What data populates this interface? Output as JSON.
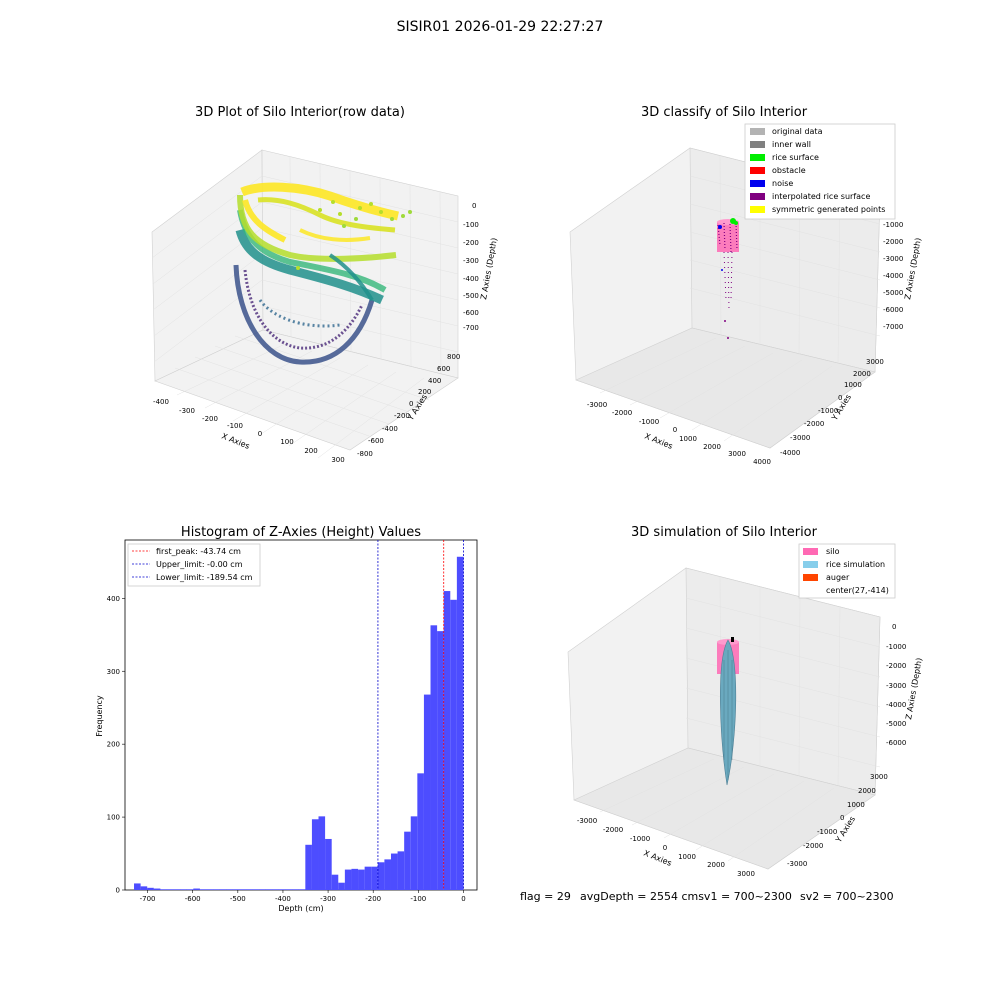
{
  "figure": {
    "suptitle": "SISIR01 2026-01-29 22:27:27",
    "footer": {
      "flag": "flag = 29",
      "avg": "avgDepth = 2554 cmsv1 = 700~2300",
      "sv2": "sv2 = 700~2300"
    }
  },
  "panels": {
    "raw": {
      "title": "3D Plot of Silo Interior(row data)",
      "xlabel": "X Axies",
      "ylabel": "Y Axies",
      "zlabel": "Z Axies (Depth)",
      "xticks": [
        "-400",
        "-300",
        "-200",
        "-100",
        "0",
        "100",
        "200",
        "300"
      ],
      "yticks": [
        "-800",
        "-600",
        "-400",
        "-200",
        "0",
        "200",
        "400",
        "600",
        "800"
      ],
      "zticks": [
        "0",
        "-100",
        "-200",
        "-300",
        "-400",
        "-500",
        "-600",
        "-700"
      ],
      "colormap": "viridis"
    },
    "classify": {
      "title": "3D classify of Silo Interior",
      "xlabel": "X Axies",
      "ylabel": "Y Axies",
      "zlabel": "Z Axies (Depth)",
      "xticks": [
        "-3000",
        "-2000",
        "-1000",
        "0",
        "1000",
        "2000",
        "3000",
        "4000"
      ],
      "yticks": [
        "-4000",
        "-3000",
        "-2000",
        "-1000",
        "0",
        "1000",
        "2000",
        "3000"
      ],
      "zticks": [
        "-1000",
        "-2000",
        "-3000",
        "-4000",
        "-5000",
        "-6000",
        "-7000"
      ],
      "legend": [
        {
          "label": "original data",
          "color": "#b3b3b3"
        },
        {
          "label": "inner wall",
          "color": "#808080"
        },
        {
          "label": "rice surface",
          "color": "#00ee00"
        },
        {
          "label": "obstacle",
          "color": "#ff0000"
        },
        {
          "label": "noise",
          "color": "#0000ee"
        },
        {
          "label": "interpolated rice surface",
          "color": "#800080"
        },
        {
          "label": "symmetric generated points",
          "color": "#ffff00"
        }
      ]
    },
    "histogram": {
      "title": "Histogram of Z-Axies (Height) Values",
      "xlabel": "Depth (cm)",
      "ylabel": "Frequency",
      "legend": [
        {
          "label": "first_peak: -43.74 cm",
          "color": "#ff0000"
        },
        {
          "label": "Upper_limit: -0.00 cm",
          "color": "#0000cc"
        },
        {
          "label": "Lower_limit: -189.54 cm",
          "color": "#0000cc"
        }
      ]
    },
    "simulation": {
      "title": "3D simulation of Silo Interior",
      "xlabel": "X Axies",
      "ylabel": "Y Axies",
      "zlabel": "Z Axies (Depth)",
      "xticks": [
        "-3000",
        "-2000",
        "-1000",
        "0",
        "1000",
        "2000",
        "3000"
      ],
      "yticks": [
        "-3000",
        "-2000",
        "-1000",
        "0",
        "1000",
        "2000",
        "3000"
      ],
      "zticks": [
        "0",
        "-1000",
        "-2000",
        "-3000",
        "-4000",
        "-5000",
        "-6000"
      ],
      "legend": [
        {
          "label": "silo",
          "color": "#ff69b4"
        },
        {
          "label": "rice simulation",
          "color": "#87ceeb"
        },
        {
          "label": "auger",
          "color": "#ff4500"
        },
        {
          "label": "center(27,-414)",
          "color": ""
        }
      ]
    }
  },
  "chart_data": {
    "type": "bar",
    "title": "Histogram of Z-Axies (Height) Values",
    "xlabel": "Depth (cm)",
    "ylabel": "Frequency",
    "xlim": [
      -750,
      30
    ],
    "ylim": [
      0,
      480
    ],
    "xticks": [
      -700,
      -600,
      -500,
      -400,
      -300,
      -200,
      -100,
      0
    ],
    "yticks": [
      0,
      100,
      200,
      300,
      400
    ],
    "bin_width": 14.6,
    "bins": [
      {
        "x": -730,
        "y": 9
      },
      {
        "x": -715.4,
        "y": 5
      },
      {
        "x": -700.8,
        "y": 3
      },
      {
        "x": -686.2,
        "y": 2
      },
      {
        "x": -671.6,
        "y": 1
      },
      {
        "x": -657,
        "y": 1
      },
      {
        "x": -642.4,
        "y": 1
      },
      {
        "x": -627.8,
        "y": 1
      },
      {
        "x": -613.2,
        "y": 1
      },
      {
        "x": -598.6,
        "y": 2
      },
      {
        "x": -584,
        "y": 1
      },
      {
        "x": -569.4,
        "y": 1
      },
      {
        "x": -554.8,
        "y": 1
      },
      {
        "x": -540.2,
        "y": 1
      },
      {
        "x": -525.6,
        "y": 1
      },
      {
        "x": -511,
        "y": 1
      },
      {
        "x": -496.4,
        "y": 1
      },
      {
        "x": -481.8,
        "y": 1
      },
      {
        "x": -467.2,
        "y": 1
      },
      {
        "x": -452.6,
        "y": 1
      },
      {
        "x": -438,
        "y": 1
      },
      {
        "x": -423.4,
        "y": 1
      },
      {
        "x": -408.8,
        "y": 1
      },
      {
        "x": -394.2,
        "y": 1
      },
      {
        "x": -379.6,
        "y": 1
      },
      {
        "x": -365,
        "y": 1
      },
      {
        "x": -350.4,
        "y": 62
      },
      {
        "x": -335.8,
        "y": 97
      },
      {
        "x": -321.2,
        "y": 101
      },
      {
        "x": -306.6,
        "y": 70
      },
      {
        "x": -292,
        "y": 21
      },
      {
        "x": -277.4,
        "y": 10
      },
      {
        "x": -262.8,
        "y": 28
      },
      {
        "x": -248.2,
        "y": 29
      },
      {
        "x": -233.6,
        "y": 28
      },
      {
        "x": -219,
        "y": 32
      },
      {
        "x": -204.4,
        "y": 32
      },
      {
        "x": -189.8,
        "y": 38
      },
      {
        "x": -175.2,
        "y": 42
      },
      {
        "x": -160.6,
        "y": 50
      },
      {
        "x": -146,
        "y": 53
      },
      {
        "x": -131.4,
        "y": 80
      },
      {
        "x": -116.8,
        "y": 101
      },
      {
        "x": -102.2,
        "y": 160
      },
      {
        "x": -87.6,
        "y": 268
      },
      {
        "x": -73,
        "y": 363
      },
      {
        "x": -58.4,
        "y": 355
      },
      {
        "x": -43.8,
        "y": 410
      },
      {
        "x": -29.2,
        "y": 398
      },
      {
        "x": -14.6,
        "y": 457
      }
    ],
    "vlines": [
      {
        "name": "first_peak",
        "x": -43.74,
        "color": "#ff0000"
      },
      {
        "name": "Upper_limit",
        "x": 0,
        "color": "#0000cc"
      },
      {
        "name": "Lower_limit",
        "x": -189.54,
        "color": "#0000cc"
      }
    ],
    "bar_color": "#4d4dff",
    "legend_position": "upper-left",
    "grid": false
  }
}
